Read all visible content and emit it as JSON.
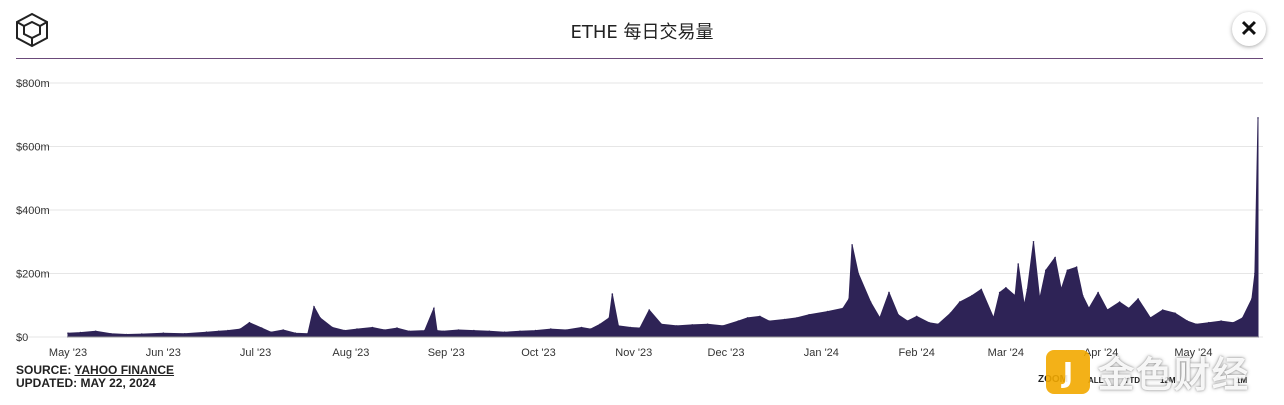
{
  "header": {
    "title": "ETHE 每日交易量",
    "close_label": "✕"
  },
  "footer": {
    "source_prefix": "SOURCE: ",
    "source_link": "YAHOO FINANCE",
    "updated": "UPDATED: MAY 22, 2024"
  },
  "zoom": {
    "label": "ZOOM",
    "options": [
      "ALL",
      "YTD",
      "12M",
      "1M"
    ]
  },
  "watermark": {
    "badge": "J",
    "text": "金色财经"
  },
  "colors": {
    "area_fill": "#2e2356",
    "header_rule": "#6b4a7a",
    "grid": "#e6e6e6"
  },
  "chart_data": {
    "type": "area",
    "title": "ETHE 每日交易量",
    "ylim": [
      0,
      800
    ],
    "y_unit": "USD millions",
    "y_ticks": [
      0,
      200,
      400,
      600,
      800
    ],
    "y_tick_labels": [
      "$0",
      "$200m",
      "$400m",
      "$600m",
      "$800m"
    ],
    "x_ticks": [
      "2023-05-01",
      "2023-06-01",
      "2023-07-01",
      "2023-08-01",
      "2023-09-01",
      "2023-10-01",
      "2023-11-01",
      "2023-12-01",
      "2024-01-01",
      "2024-02-01",
      "2024-03-01",
      "2024-04-01",
      "2024-05-01"
    ],
    "x_tick_labels": [
      "May '23",
      "Jun '23",
      "Jul '23",
      "Aug '23",
      "Sep '23",
      "Oct '23",
      "Nov '23",
      "Dec '23",
      "Jan '24",
      "Feb '24",
      "Mar '24",
      "Apr '24",
      "May '24"
    ],
    "grid": true,
    "legend": "none",
    "series": [
      {
        "x": [
          "2023-05-01",
          "2023-05-05",
          "2023-05-10",
          "2023-05-15",
          "2023-05-20",
          "2023-05-25",
          "2023-06-01",
          "2023-06-08",
          "2023-06-15",
          "2023-06-19",
          "2023-06-22",
          "2023-06-26",
          "2023-06-29",
          "2023-07-03",
          "2023-07-06",
          "2023-07-10",
          "2023-07-14",
          "2023-07-18",
          "2023-07-20",
          "2023-07-22",
          "2023-07-26",
          "2023-07-30",
          "2023-08-03",
          "2023-08-08",
          "2023-08-12",
          "2023-08-16",
          "2023-08-20",
          "2023-08-25",
          "2023-08-28",
          "2023-08-29",
          "2023-08-31",
          "2023-09-05",
          "2023-09-10",
          "2023-09-15",
          "2023-09-20",
          "2023-09-25",
          "2023-09-30",
          "2023-10-05",
          "2023-10-10",
          "2023-10-15",
          "2023-10-18",
          "2023-10-21",
          "2023-10-24",
          "2023-10-25",
          "2023-10-27",
          "2023-10-31",
          "2023-11-03",
          "2023-11-06",
          "2023-11-10",
          "2023-11-15",
          "2023-11-20",
          "2023-11-25",
          "2023-11-30",
          "2023-12-05",
          "2023-12-08",
          "2023-12-12",
          "2023-12-15",
          "2023-12-20",
          "2023-12-24",
          "2023-12-28",
          "2024-01-03",
          "2024-01-08",
          "2024-01-10",
          "2024-01-11",
          "2024-01-13",
          "2024-01-17",
          "2024-01-20",
          "2024-01-23",
          "2024-01-26",
          "2024-01-29",
          "2024-02-01",
          "2024-02-05",
          "2024-02-08",
          "2024-02-12",
          "2024-02-15",
          "2024-02-19",
          "2024-02-22",
          "2024-02-26",
          "2024-02-28",
          "2024-03-01",
          "2024-03-04",
          "2024-03-05",
          "2024-03-07",
          "2024-03-08",
          "2024-03-10",
          "2024-03-12",
          "2024-03-14",
          "2024-03-17",
          "2024-03-19",
          "2024-03-21",
          "2024-03-24",
          "2024-03-26",
          "2024-03-28",
          "2024-03-31",
          "2024-04-03",
          "2024-04-07",
          "2024-04-10",
          "2024-04-13",
          "2024-04-17",
          "2024-04-21",
          "2024-04-25",
          "2024-04-29",
          "2024-05-02",
          "2024-05-06",
          "2024-05-10",
          "2024-05-14",
          "2024-05-17",
          "2024-05-20",
          "2024-05-21",
          "2024-05-22"
        ],
        "values": [
          12,
          14,
          18,
          10,
          8,
          9,
          12,
          10,
          15,
          18,
          20,
          25,
          45,
          28,
          15,
          22,
          12,
          10,
          95,
          60,
          30,
          20,
          25,
          30,
          22,
          28,
          18,
          20,
          90,
          20,
          18,
          22,
          20,
          18,
          15,
          18,
          20,
          25,
          22,
          30,
          25,
          40,
          60,
          135,
          35,
          30,
          28,
          85,
          40,
          35,
          38,
          40,
          35,
          50,
          60,
          65,
          50,
          55,
          60,
          70,
          80,
          90,
          120,
          290,
          200,
          110,
          60,
          140,
          70,
          50,
          65,
          45,
          40,
          75,
          110,
          130,
          150,
          60,
          140,
          155,
          130,
          230,
          100,
          150,
          300,
          120,
          210,
          250,
          150,
          210,
          220,
          130,
          90,
          140,
          85,
          110,
          90,
          120,
          60,
          85,
          75,
          50,
          40,
          45,
          50,
          45,
          60,
          120,
          200,
          690
        ]
      }
    ]
  }
}
